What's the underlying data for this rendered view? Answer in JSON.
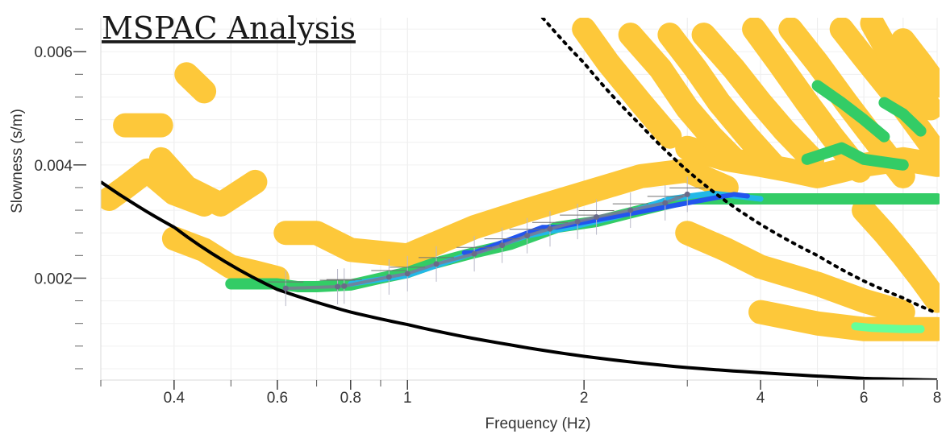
{
  "chart_data": {
    "type": "scatter",
    "title": "MSPAC Analysis",
    "xlabel": "Frequency (Hz)",
    "ylabel": "Slowness (s/m)",
    "x_scale": "log",
    "xlim": [
      0.3,
      8
    ],
    "ylim": [
      0.0002,
      0.0066
    ],
    "x_ticks": [
      {
        "value": 0.4,
        "label": "0.4"
      },
      {
        "value": 0.6,
        "label": "0.6"
      },
      {
        "value": 0.8,
        "label": "0.8"
      },
      {
        "value": 1,
        "label": "1"
      },
      {
        "value": 2,
        "label": "2"
      },
      {
        "value": 4,
        "label": "4"
      },
      {
        "value": 6,
        "label": "6"
      },
      {
        "value": 8,
        "label": "8"
      }
    ],
    "y_ticks": [
      {
        "value": 0.002,
        "label": "0.002"
      },
      {
        "value": 0.004,
        "label": "0.004"
      },
      {
        "value": 0.006,
        "label": "0.006"
      }
    ],
    "grid": true,
    "colors": {
      "low": "#fdc83a",
      "mid": "#33cc66",
      "mid_high": "#66ff99",
      "high": "#22b8e8",
      "peak": "#2255ee",
      "picked_curve": "#7a7a92",
      "picked_point": "#6a6a88",
      "limit_lines": "#000000"
    },
    "picked_curve": {
      "x": [
        0.62,
        0.76,
        0.78,
        0.93,
        1.0,
        1.12,
        1.3,
        1.45,
        1.6,
        1.75,
        1.95,
        2.1,
        2.4,
        2.75,
        3.0
      ],
      "y": [
        0.00182,
        0.00185,
        0.00186,
        0.00202,
        0.00208,
        0.00225,
        0.00243,
        0.00258,
        0.00275,
        0.00287,
        0.003,
        0.00308,
        0.0032,
        0.00333,
        0.00348
      ]
    },
    "limit_curve_solid": {
      "x": [
        0.3,
        0.4,
        0.6,
        0.8,
        1.0,
        1.5,
        2.0,
        3.0,
        4.0,
        6.0,
        8.0
      ],
      "y": [
        0.0037,
        0.0029,
        0.0018,
        0.0014,
        0.00118,
        0.00082,
        0.00062,
        0.00042,
        0.00033,
        0.00023,
        0.0002
      ]
    },
    "limit_curve_dotted": {
      "x": [
        1.7,
        2.0,
        2.5,
        3.0,
        3.5,
        4.0,
        5.0,
        6.0,
        7.0,
        8.0
      ],
      "y": [
        0.0066,
        0.0058,
        0.0047,
        0.0039,
        0.00335,
        0.00295,
        0.0024,
        0.00195,
        0.00165,
        0.00138
      ]
    },
    "energy_bands": [
      {
        "x": [
          0.31,
          0.33,
          0.36,
          0.4,
          0.45
        ],
        "y": [
          0.0034,
          0.0036,
          0.0039,
          0.0035,
          0.0033
        ],
        "level": "low"
      },
      {
        "x": [
          0.33,
          0.36,
          0.38
        ],
        "y": [
          0.0047,
          0.0047,
          0.0047
        ],
        "level": "low"
      },
      {
        "x": [
          0.42,
          0.45
        ],
        "y": [
          0.0056,
          0.0053
        ],
        "level": "low"
      },
      {
        "x": [
          0.4,
          0.45,
          0.5,
          0.55,
          0.6
        ],
        "y": [
          0.0027,
          0.0025,
          0.0022,
          0.0021,
          0.002
        ],
        "level": "low"
      },
      {
        "x": [
          0.38,
          0.42,
          0.48,
          0.55
        ],
        "y": [
          0.0041,
          0.0036,
          0.0033,
          0.0037
        ],
        "level": "low"
      },
      {
        "x": [
          0.5,
          0.55,
          0.6,
          0.65,
          0.7,
          0.8,
          0.9,
          1.0,
          1.1,
          1.3,
          1.5,
          1.8,
          2.1,
          2.5,
          3.0,
          3.5,
          4.0,
          5.0,
          6.0,
          7.0,
          8.0
        ],
        "y": [
          0.0019,
          0.0019,
          0.0019,
          0.00185,
          0.00185,
          0.00188,
          0.002,
          0.0021,
          0.00225,
          0.00245,
          0.0026,
          0.0029,
          0.003,
          0.0032,
          0.0034,
          0.0034,
          0.0034,
          0.0034,
          0.0034,
          0.0034,
          0.0034
        ],
        "level": "mid"
      },
      {
        "x": [
          0.8,
          1.0,
          1.3,
          1.6,
          1.9,
          2.3,
          2.8,
          3.3,
          4.0
        ],
        "y": [
          0.0019,
          0.00205,
          0.00245,
          0.00275,
          0.0029,
          0.0031,
          0.0034,
          0.0035,
          0.0034
        ],
        "level": "high"
      },
      {
        "x": [
          1.25,
          1.3,
          1.7,
          1.8,
          3.6,
          3.8
        ],
        "y": [
          0.00245,
          0.00245,
          0.0029,
          0.0029,
          0.00348,
          0.00345
        ],
        "level": "peak"
      },
      {
        "x": [
          0.62,
          0.7,
          0.8,
          1.0,
          1.3,
          1.6,
          2.0,
          2.5,
          3.0,
          3.5
        ],
        "y": [
          0.0028,
          0.0028,
          0.0025,
          0.0024,
          0.0029,
          0.0032,
          0.0035,
          0.0038,
          0.0039,
          0.0036
        ],
        "level": "low"
      },
      {
        "x": [
          3.0,
          3.5,
          4.0,
          4.5,
          5.0,
          5.5,
          6.0,
          7.0,
          8.0
        ],
        "y": [
          0.0043,
          0.0041,
          0.004,
          0.0039,
          0.0038,
          0.0039,
          0.004,
          0.0041,
          0.004
        ],
        "level": "low"
      },
      {
        "x": [
          4.8,
          5.5,
          6.0,
          7.0
        ],
        "y": [
          0.0041,
          0.0043,
          0.0041,
          0.004
        ],
        "level": "mid"
      },
      {
        "x": [
          3.0,
          3.5,
          4.0,
          5.0,
          6.0,
          7.0
        ],
        "y": [
          0.0028,
          0.0025,
          0.0022,
          0.0019,
          0.0016,
          0.0014
        ],
        "level": "low"
      },
      {
        "x": [
          4.0,
          5.0,
          6.0,
          7.0,
          8.0
        ],
        "y": [
          0.0014,
          0.0012,
          0.0011,
          0.0011,
          0.0011
        ],
        "level": "low"
      },
      {
        "x": [
          5.8,
          6.2,
          7.0,
          7.5
        ],
        "y": [
          0.00115,
          0.00112,
          0.0011,
          0.0011
        ],
        "level": "mid_high"
      },
      {
        "x": [
          2.0,
          2.2,
          2.5,
          2.8
        ],
        "y": [
          0.0064,
          0.0058,
          0.0051,
          0.0045
        ],
        "level": "low"
      },
      {
        "x": [
          2.4,
          2.7,
          3.0,
          3.3,
          3.6
        ],
        "y": [
          0.0063,
          0.0057,
          0.005,
          0.0045,
          0.0041
        ],
        "level": "low"
      },
      {
        "x": [
          2.8,
          3.1,
          3.4,
          3.8,
          4.2
        ],
        "y": [
          0.0063,
          0.0057,
          0.0051,
          0.0045,
          0.004
        ],
        "level": "low"
      },
      {
        "x": [
          3.2,
          3.6,
          4.0,
          4.4,
          4.9
        ],
        "y": [
          0.0063,
          0.0057,
          0.0051,
          0.0046,
          0.0041
        ],
        "level": "low"
      },
      {
        "x": [
          3.9,
          4.3,
          4.8,
          5.3,
          5.9
        ],
        "y": [
          0.0064,
          0.0058,
          0.0051,
          0.0045,
          0.0039
        ],
        "level": "low"
      },
      {
        "x": [
          4.5,
          5.0,
          5.6,
          6.2,
          7.0
        ],
        "y": [
          0.0064,
          0.0058,
          0.0051,
          0.0045,
          0.0038
        ],
        "level": "low"
      },
      {
        "x": [
          5.5,
          6.0,
          6.8,
          7.5,
          8.0
        ],
        "y": [
          0.0064,
          0.0059,
          0.0052,
          0.0046,
          0.0042
        ],
        "level": "low"
      },
      {
        "x": [
          6.2,
          6.6,
          7.2,
          7.8
        ],
        "y": [
          0.0065,
          0.006,
          0.0055,
          0.005
        ],
        "level": "low"
      },
      {
        "x": [
          5.0,
          5.5,
          6.0,
          6.5
        ],
        "y": [
          0.0054,
          0.0051,
          0.0048,
          0.0045
        ],
        "level": "mid"
      },
      {
        "x": [
          6.5,
          7.0,
          7.5
        ],
        "y": [
          0.0051,
          0.0049,
          0.0046
        ],
        "level": "mid"
      },
      {
        "x": [
          6.0,
          6.5,
          7.0,
          7.5,
          8.0
        ],
        "y": [
          0.0032,
          0.0028,
          0.0024,
          0.002,
          0.0016
        ],
        "level": "low"
      },
      {
        "x": [
          7.0,
          7.5,
          8.0
        ],
        "y": [
          0.0062,
          0.0058,
          0.0054
        ],
        "level": "low"
      }
    ]
  }
}
